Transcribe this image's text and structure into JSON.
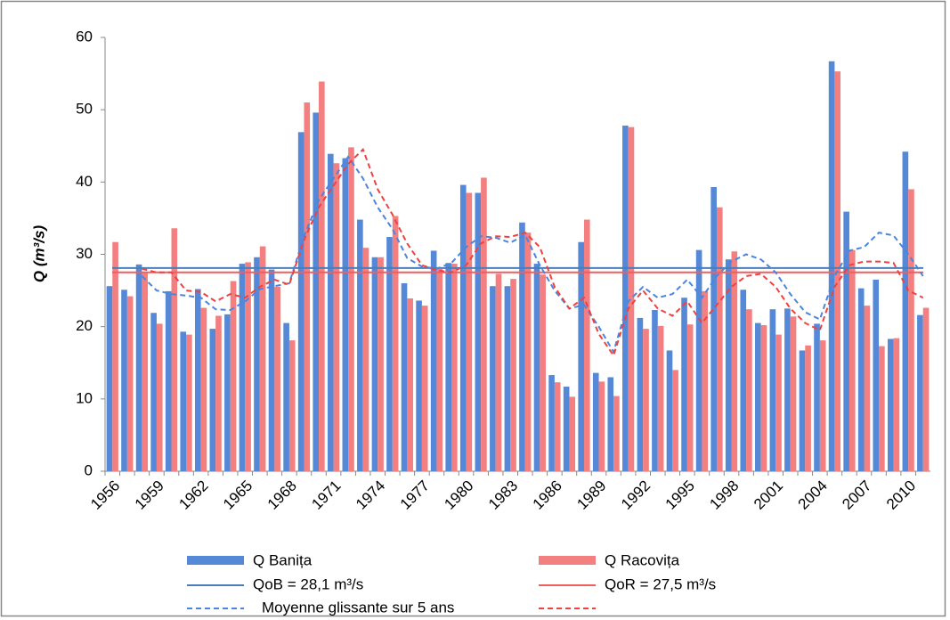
{
  "chart_data": {
    "type": "bar",
    "y_label": "Q (m³/s)",
    "ylim": [
      0,
      60
    ],
    "yticks": [
      0,
      10,
      20,
      30,
      40,
      50,
      60
    ],
    "grid": false,
    "categories": [
      "1956",
      null,
      null,
      "1959",
      null,
      null,
      "1962",
      null,
      null,
      "1965",
      null,
      null,
      "1968",
      null,
      null,
      "1971",
      null,
      null,
      "1974",
      null,
      null,
      "1977",
      null,
      null,
      "1980",
      null,
      null,
      "1983",
      null,
      null,
      "1986",
      null,
      null,
      "1989",
      null,
      null,
      "1992",
      null,
      null,
      "1995",
      null,
      null,
      "1998",
      null,
      null,
      "2001",
      null,
      null,
      "2004",
      null,
      null,
      "2007",
      null,
      null,
      "2010",
      null
    ],
    "series": [
      {
        "name": "Q Banița",
        "color": "#5588d6",
        "values": [
          25.6,
          25.1,
          28.6,
          21.9,
          24.9,
          19.3,
          25.2,
          19.7,
          21.7,
          28.7,
          29.6,
          27.9,
          20.5,
          46.9,
          49.6,
          43.9,
          43.3,
          34.8,
          29.6,
          32.4,
          26.0,
          23.6,
          30.5,
          28.8,
          39.6,
          38.5,
          25.6,
          25.6,
          34.4,
          28.7,
          13.3,
          11.7,
          31.7,
          13.6,
          13.0,
          47.8,
          21.2,
          22.3,
          16.7,
          24.0,
          30.6,
          39.3,
          29.3,
          25.1,
          20.5,
          22.4,
          22.5,
          16.7,
          20.4,
          56.7,
          35.9,
          25.3,
          26.5,
          18.3,
          44.2,
          21.6
        ]
      },
      {
        "name": "Q Racovița",
        "color": "#f37f80",
        "values": [
          31.7,
          24.2,
          27.4,
          20.4,
          33.6,
          18.9,
          22.6,
          21.5,
          26.3,
          28.9,
          31.1,
          25.5,
          18.1,
          51.0,
          53.9,
          42.6,
          44.8,
          30.9,
          29.6,
          35.3,
          23.9,
          22.9,
          28.0,
          28.7,
          38.5,
          40.6,
          27.3,
          26.6,
          33.0,
          27.2,
          12.3,
          10.3,
          34.8,
          12.4,
          10.4,
          47.6,
          19.7,
          20.1,
          14.0,
          20.3,
          24.9,
          36.5,
          30.4,
          22.4,
          20.2,
          18.9,
          21.4,
          17.4,
          18.1,
          55.3,
          30.6,
          22.9,
          17.3,
          18.4,
          39.0,
          22.6
        ]
      }
    ],
    "reference_lines": [
      {
        "name": "QoB = 28,1 m³/s",
        "value": 28.1,
        "color": "#4a7ebb"
      },
      {
        "name": "QoR = 27,5 m³/s",
        "value": 27.5,
        "color": "#f05f60"
      }
    ],
    "moving_average": {
      "label": "Moyenne glissante sur 5 ans",
      "series": [
        {
          "color": "#4a86e0",
          "values": [
            null,
            null,
            27.0,
            25.0,
            24.5,
            24.3,
            24.0,
            22.4,
            22.3,
            23.5,
            25.2,
            25.6,
            26.0,
            32.5,
            37.5,
            40.5,
            43.5,
            40.5,
            36.5,
            33.5,
            29.5,
            28.3,
            28.0,
            28.8,
            31.0,
            32.5,
            32.3,
            31.6,
            32.7,
            28.5,
            25.0,
            22.5,
            23.0,
            20.0,
            16.5,
            23.5,
            25.5,
            24.0,
            24.5,
            26.5,
            24.0,
            27.0,
            29.0,
            30.0,
            29.3,
            27.5,
            24.5,
            22.0,
            21.0,
            27.0,
            30.5,
            31.0,
            33.0,
            32.6,
            30.0,
            27.0
          ]
        },
        {
          "color": "#f04040",
          "values": [
            null,
            null,
            28.0,
            27.5,
            27.5,
            25.0,
            24.8,
            23.5,
            24.5,
            24.0,
            25.5,
            26.5,
            25.8,
            32.0,
            36.5,
            39.5,
            42.5,
            44.5,
            39.0,
            35.5,
            31.5,
            28.5,
            27.8,
            27.5,
            28.5,
            31.5,
            32.5,
            32.4,
            33.0,
            31.0,
            25.5,
            22.5,
            24.0,
            19.0,
            16.0,
            22.5,
            25.0,
            22.5,
            21.5,
            23.5,
            20.5,
            23.0,
            25.5,
            27.0,
            27.3,
            25.5,
            22.5,
            20.5,
            19.5,
            25.5,
            28.5,
            29.0,
            29.0,
            28.8,
            25.0,
            24.0
          ]
        }
      ]
    }
  }
}
